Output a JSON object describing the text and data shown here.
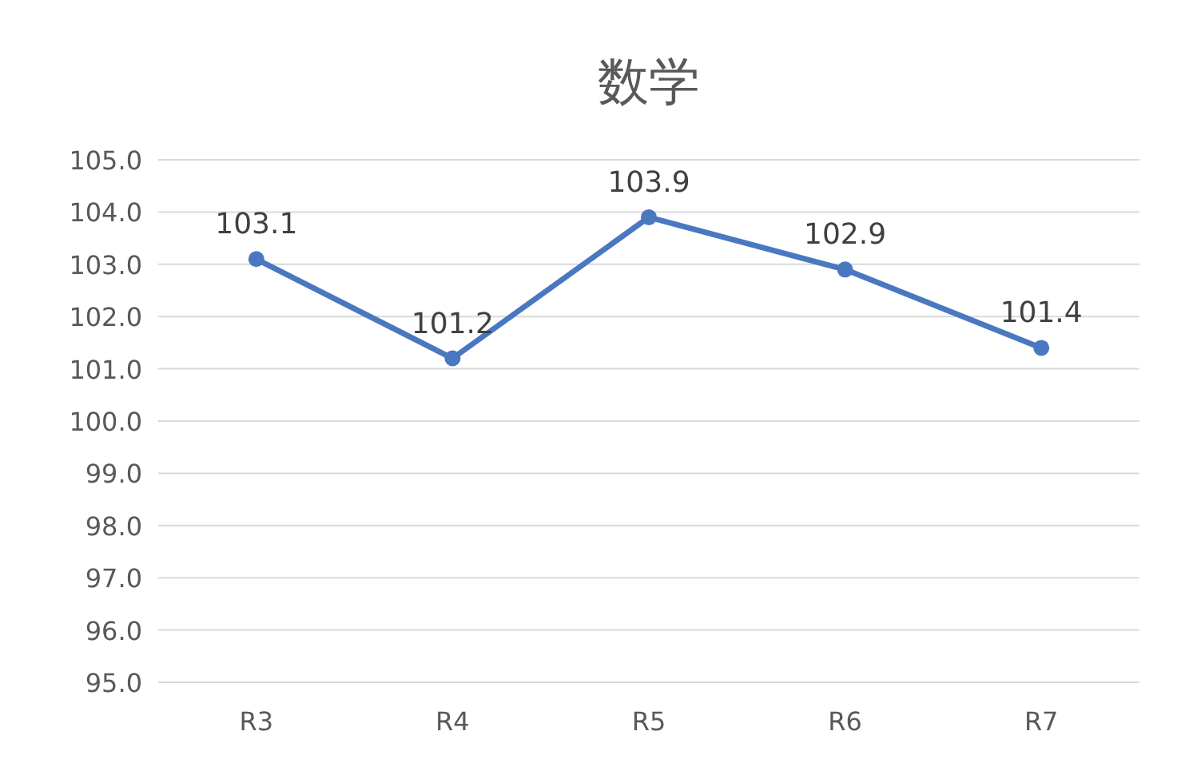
{
  "chart_data": {
    "type": "line",
    "title": "数学",
    "categories": [
      "R3",
      "R4",
      "R5",
      "R6",
      "R7"
    ],
    "series": [
      {
        "color": "#4a78c0",
        "values": [
          103.1,
          101.2,
          103.9,
          102.9,
          101.4
        ]
      }
    ],
    "ylim": [
      95,
      105
    ],
    "yticks": [
      {
        "value": 95,
        "label": "95.0"
      },
      {
        "value": 96,
        "label": "96.0"
      },
      {
        "value": 97,
        "label": "97.0"
      },
      {
        "value": 98,
        "label": "98.0"
      },
      {
        "value": 99,
        "label": "99.0"
      },
      {
        "value": 100,
        "label": "100.0"
      },
      {
        "value": 101,
        "label": "101.0"
      },
      {
        "value": 102,
        "label": "102.0"
      },
      {
        "value": 103,
        "label": "103.0"
      },
      {
        "value": 104,
        "label": "104.0"
      },
      {
        "value": 105,
        "label": "105.0"
      }
    ],
    "grid": "y",
    "data_labels": true,
    "marker": "circle",
    "line_style": "solid"
  }
}
